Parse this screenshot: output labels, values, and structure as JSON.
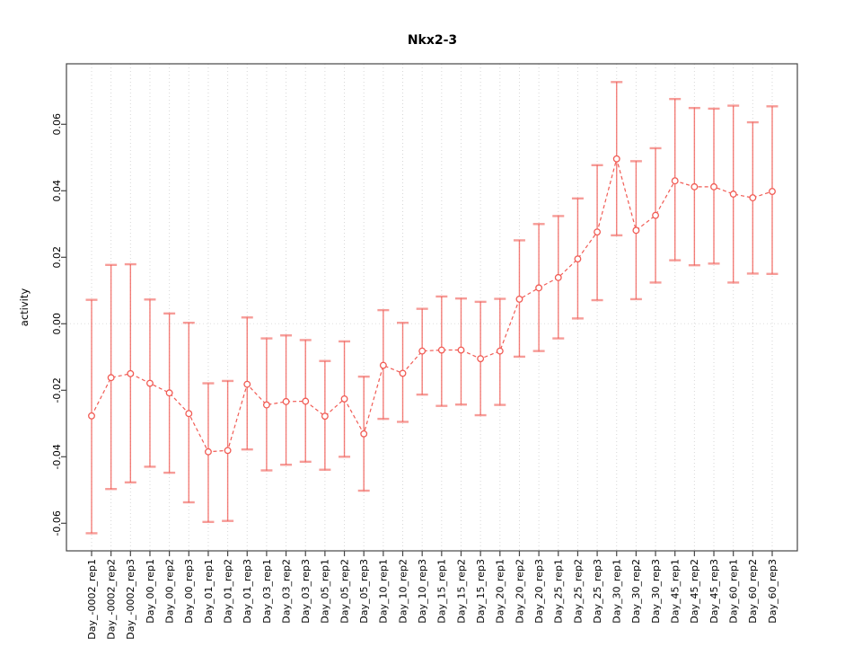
{
  "window": {
    "background": "#ffffff"
  },
  "colors": {
    "series": "#f15c55",
    "cap": "#f15c55",
    "grid": "#d7d7d7",
    "zero_line": "#dedede",
    "axis": "#454545",
    "text": "#000000"
  },
  "chart_data": {
    "type": "line",
    "title": "Nkx2-3",
    "xlabel": "",
    "ylabel": "activity",
    "legend": "none",
    "grid": "vertical dotted gridline at every category; dotted horizontal line at y=0 only",
    "marker": "open-circle",
    "line_style": "dashed",
    "error_bars": "vertical bars with horizontal end caps",
    "ylim": [
      -0.0684,
      0.0782
    ],
    "yticks": [
      -0.06,
      -0.04,
      -0.02,
      0.0,
      0.02,
      0.04,
      0.06
    ],
    "ytick_labels": [
      "-0.06",
      "-0.04",
      "-0.02",
      "0.00",
      "0.02",
      "0.04",
      "0.06"
    ],
    "categories": [
      "Day_-0002_rep1",
      "Day_-0002_rep2",
      "Day_-0002_rep3",
      "Day_00_rep1",
      "Day_00_rep2",
      "Day_00_rep3",
      "Day_01_rep1",
      "Day_01_rep2",
      "Day_01_rep3",
      "Day_03_rep1",
      "Day_03_rep2",
      "Day_03_rep3",
      "Day_05_rep1",
      "Day_05_rep2",
      "Day_05_rep3",
      "Day_10_rep1",
      "Day_10_rep2",
      "Day_10_rep3",
      "Day_15_rep1",
      "Day_15_rep2",
      "Day_15_rep3",
      "Day_20_rep1",
      "Day_20_rep2",
      "Day_20_rep3",
      "Day_25_rep1",
      "Day_25_rep2",
      "Day_25_rep3",
      "Day_30_rep1",
      "Day_30_rep2",
      "Day_30_rep3",
      "Day_45_rep1",
      "Day_45_rep2",
      "Day_45_rep3",
      "Day_60_rep1",
      "Day_60_rep2",
      "Day_60_rep3"
    ],
    "series": [
      {
        "name": "mean",
        "values": [
          -0.0277,
          -0.0162,
          -0.015,
          -0.0179,
          -0.0208,
          -0.027,
          -0.0385,
          -0.0381,
          -0.0182,
          -0.0244,
          -0.0234,
          -0.0233,
          -0.0278,
          -0.0226,
          -0.0331,
          -0.0125,
          -0.0149,
          -0.0082,
          -0.0079,
          -0.0079,
          -0.0105,
          -0.0082,
          0.0074,
          0.0108,
          0.0139,
          0.0195,
          0.0276,
          0.0496,
          0.0281,
          0.0326,
          0.043,
          0.0412,
          0.0412,
          0.039,
          0.0379,
          0.0398
        ]
      },
      {
        "name": "upper",
        "values": [
          0.0072,
          0.0177,
          0.0179,
          0.0073,
          0.0031,
          0.0003,
          -0.0179,
          -0.0172,
          0.0019,
          -0.0044,
          -0.0035,
          -0.0049,
          -0.0112,
          -0.0053,
          -0.0159,
          0.0041,
          0.0003,
          0.0045,
          0.0082,
          0.0076,
          0.0066,
          0.0075,
          0.0251,
          0.03,
          0.0324,
          0.0377,
          0.0477,
          0.0727,
          0.0489,
          0.0528,
          0.0676,
          0.0649,
          0.0647,
          0.0656,
          0.0606,
          0.0654
        ]
      },
      {
        "name": "lower",
        "values": [
          -0.063,
          -0.0497,
          -0.0477,
          -0.043,
          -0.0448,
          -0.0537,
          -0.0596,
          -0.0593,
          -0.0378,
          -0.0441,
          -0.0424,
          -0.0415,
          -0.0439,
          -0.04,
          -0.0502,
          -0.0286,
          -0.0295,
          -0.0213,
          -0.0247,
          -0.0243,
          -0.0275,
          -0.0244,
          -0.0099,
          -0.0082,
          -0.0044,
          0.0016,
          0.0071,
          0.0266,
          0.0074,
          0.0124,
          0.0191,
          0.0176,
          0.0181,
          0.0124,
          0.0151,
          0.015
        ]
      }
    ]
  }
}
